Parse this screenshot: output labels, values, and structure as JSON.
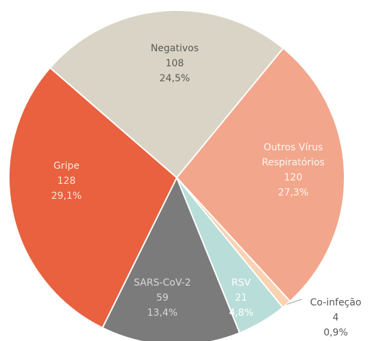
{
  "chart_data": {
    "type": "pie",
    "categories": [
      "Negativos",
      "Outros Vírus Respiratórios",
      "Co-infeção",
      "RSV",
      "SARS-CoV-2",
      "Gripe"
    ],
    "values": [
      108,
      120,
      4,
      21,
      59,
      128
    ],
    "shares": [
      24.5,
      27.3,
      0.9,
      4.8,
      13.4,
      29.1
    ],
    "share_labels": [
      "24,5%",
      "27,3%",
      "0,9%",
      "4,8%",
      "13,4%",
      "29,1%"
    ],
    "colors": [
      "#d9d4c5",
      "#f2a68c",
      "#f8d2b2",
      "#b9ddd8",
      "#7b7b7b",
      "#e9613f"
    ]
  }
}
